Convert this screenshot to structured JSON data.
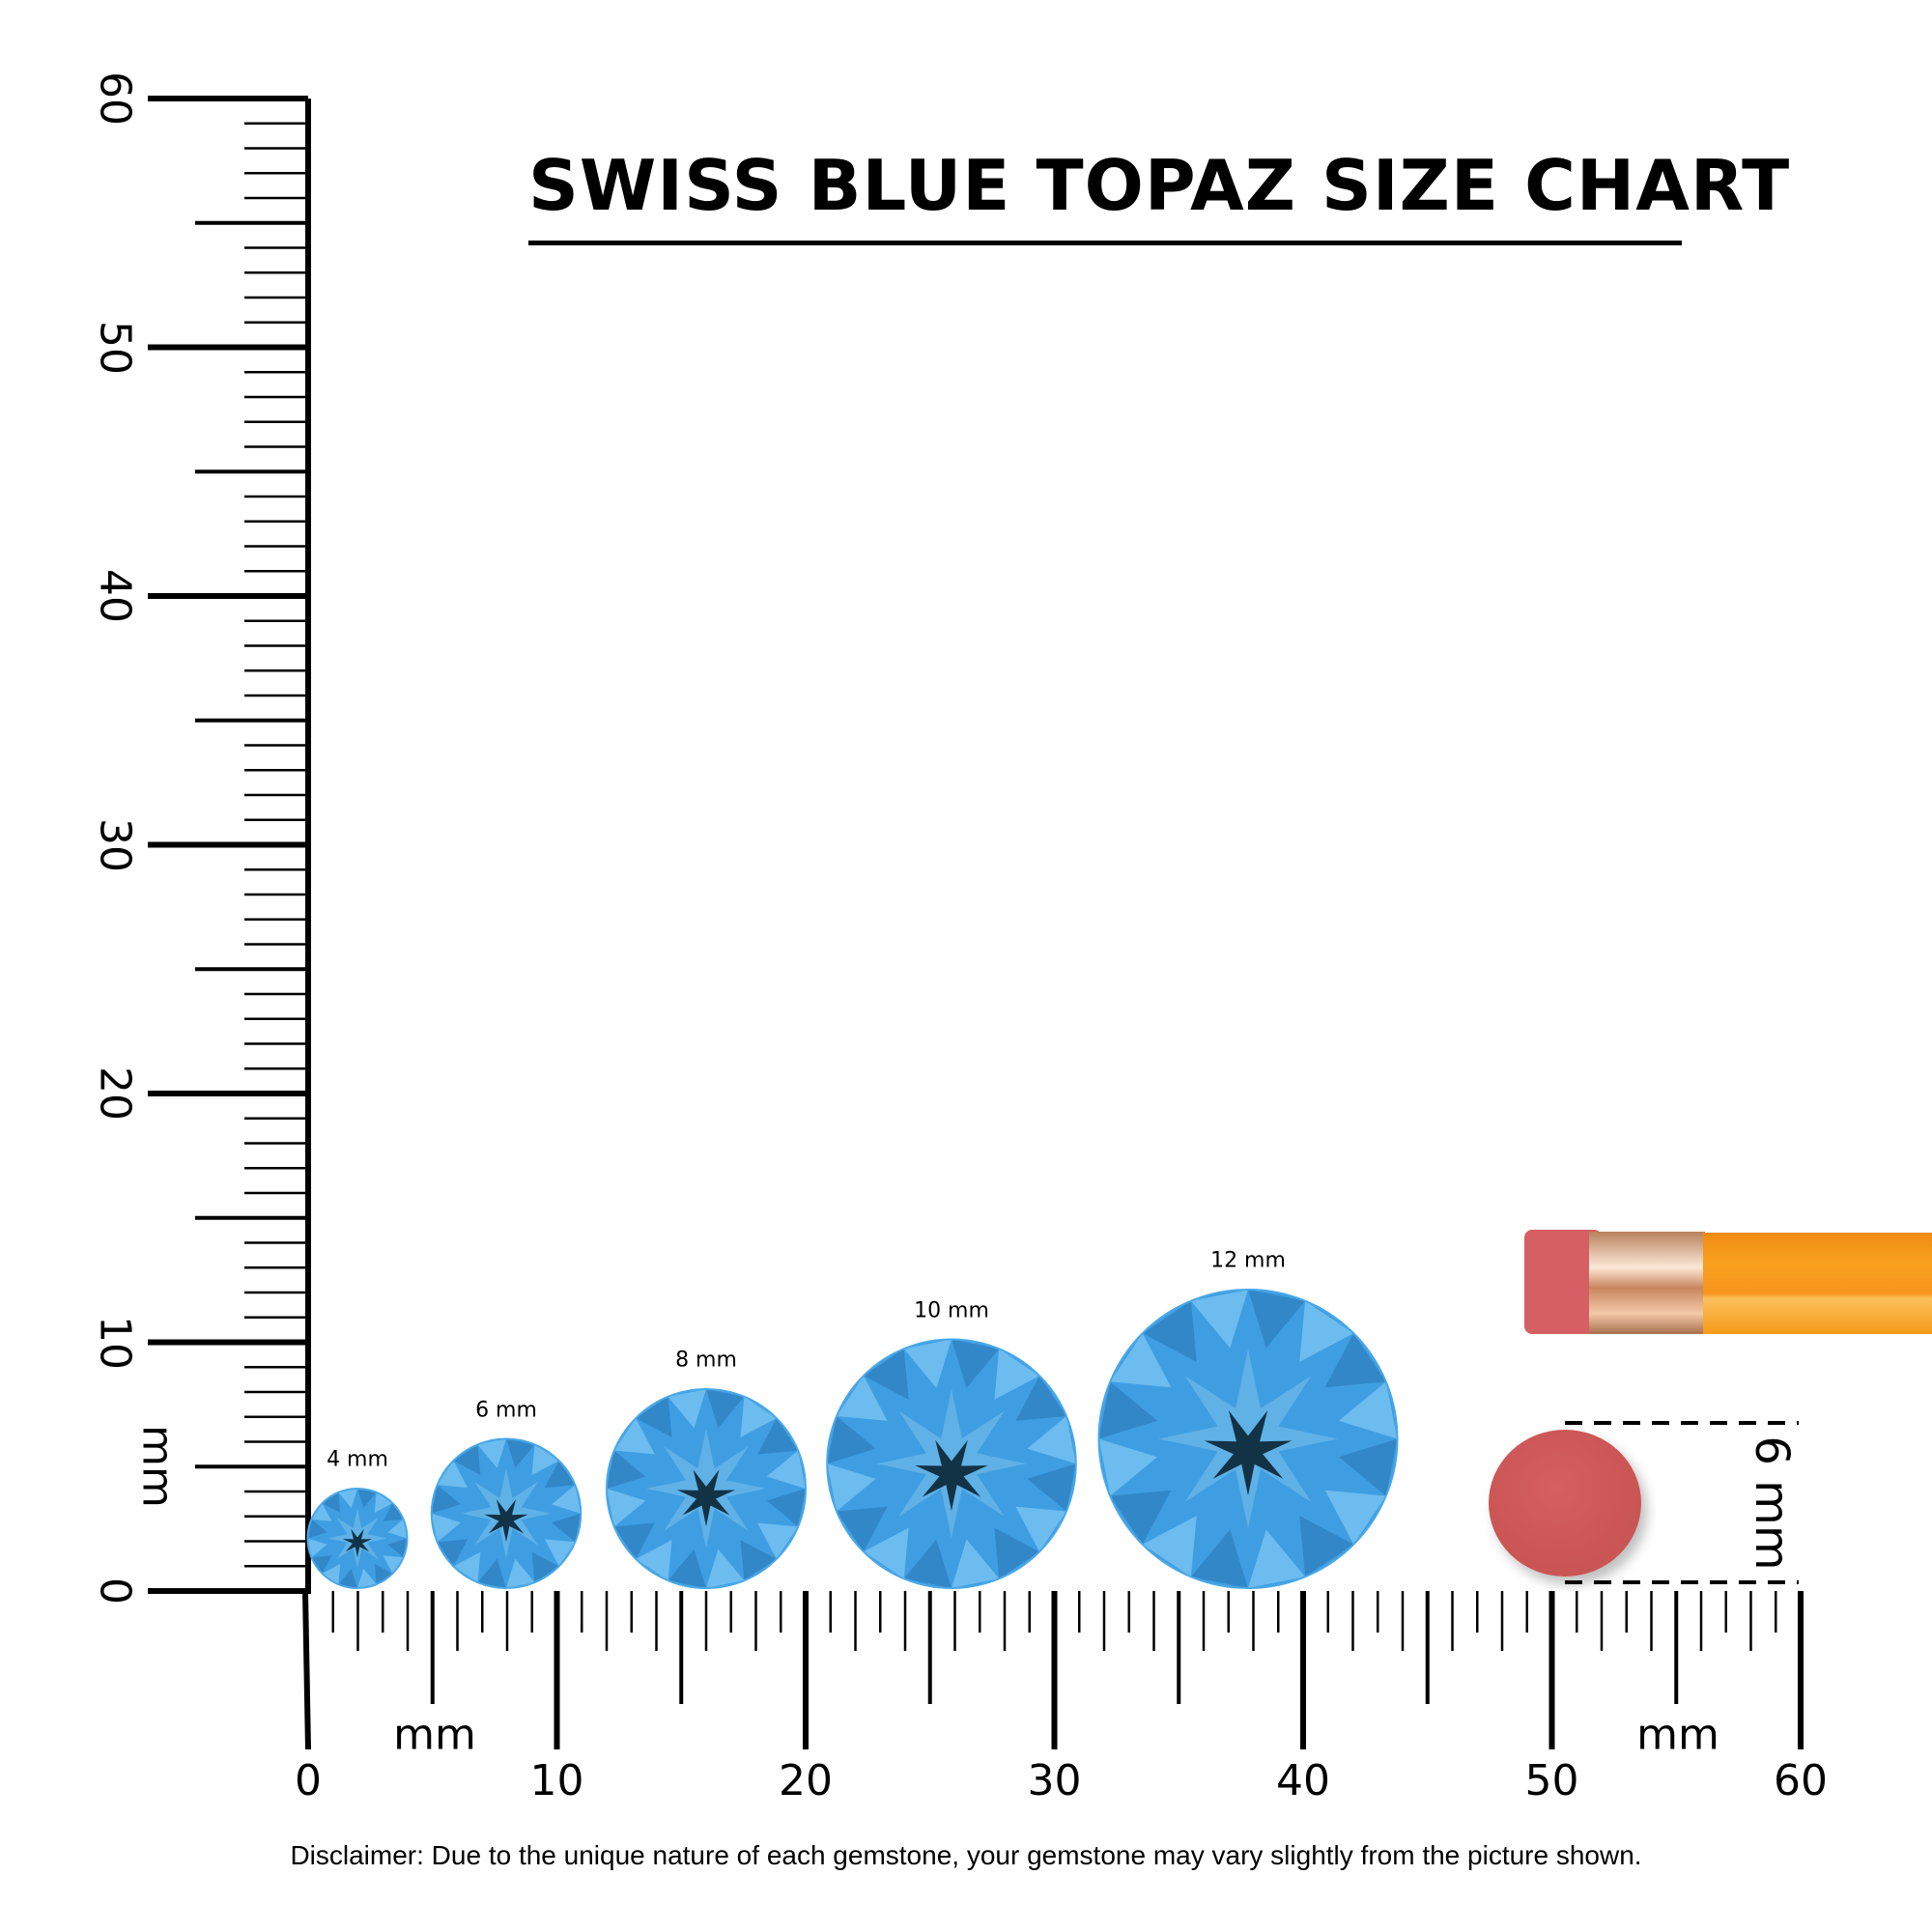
{
  "title": "SWISS BLUE TOPAZ SIZE CHART",
  "ruler": {
    "unit_label": "mm",
    "range_mm": [
      0,
      60
    ],
    "tick_labels": [
      "0",
      "10",
      "20",
      "30",
      "40",
      "50",
      "60"
    ]
  },
  "gems": [
    {
      "label": "4 mm",
      "size_mm": 4
    },
    {
      "label": "6 mm",
      "size_mm": 6
    },
    {
      "label": "8 mm",
      "size_mm": 8
    },
    {
      "label": "10 mm",
      "size_mm": 10
    },
    {
      "label": "12 mm",
      "size_mm": 12
    }
  ],
  "reference": {
    "label": "6 mm",
    "object": "pencil eraser",
    "size_mm": 6
  },
  "disclaimer": "Disclaimer: Due to the unique nature of each gemstone, your gemstone may vary slightly from the picture shown.",
  "colors": {
    "gem": "#3f9ee2",
    "gem_light": "#7cc6f4",
    "gem_dark": "#123246",
    "eraser": "#d05a5a",
    "pencil": "#f7941d",
    "ferrule": "#d9a27a"
  }
}
